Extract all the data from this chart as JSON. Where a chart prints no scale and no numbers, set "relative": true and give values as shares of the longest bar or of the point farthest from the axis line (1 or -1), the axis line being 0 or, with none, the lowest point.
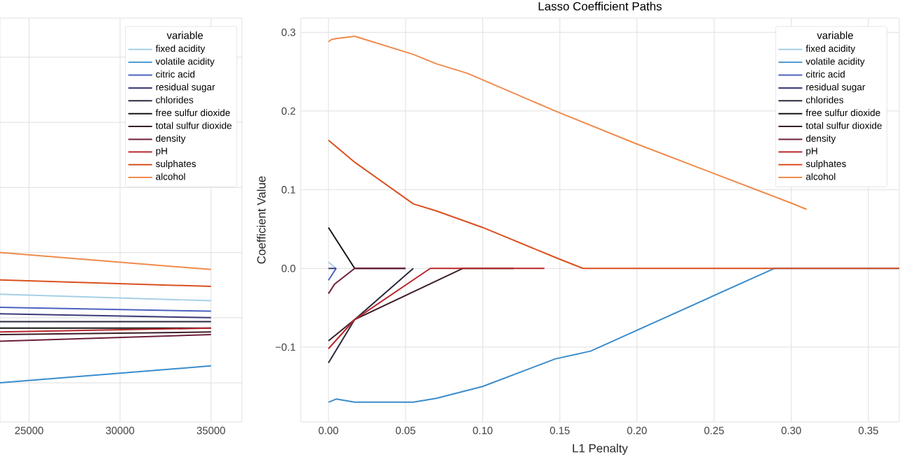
{
  "chart_data": [
    {
      "type": "line",
      "relative": true,
      "x": [
        23400,
        35000
      ],
      "xlim": [
        23400,
        36700
      ],
      "xticks": [
        25000,
        30000,
        35000
      ],
      "tick_labels": "x",
      "grid": true,
      "legend": "top right",
      "legend_title": "variable",
      "series": [
        {
          "name": "fixed acidity",
          "color": "#a6cfe6",
          "values": [
            0.68,
            0.63
          ]
        },
        {
          "name": "volatile acidity",
          "color": "#3a8ccc",
          "values": [
            0,
            0.13
          ]
        },
        {
          "name": "citric acid",
          "color": "#4a62c0",
          "values": [
            0.58,
            0.55
          ]
        },
        {
          "name": "residual sugar",
          "color": "#3a3a78",
          "values": [
            0.53,
            0.5
          ]
        },
        {
          "name": "chlorides",
          "color": "#2a2a3e",
          "values": [
            0.47,
            0.47
          ]
        },
        {
          "name": "free sulfur dioxide",
          "color": "#161616",
          "values": [
            0.42,
            0.42
          ]
        },
        {
          "name": "total sulfur dioxide",
          "color": "#3a1e28",
          "values": [
            0.37,
            0.39
          ]
        },
        {
          "name": "density",
          "color": "#6e1e3a",
          "values": [
            0.32,
            0.37
          ]
        },
        {
          "name": "pH",
          "color": "#b8262c",
          "values": [
            0.39,
            0.42
          ]
        },
        {
          "name": "sulphates",
          "color": "#d9501e",
          "values": [
            0.79,
            0.74
          ]
        },
        {
          "name": "alcohol",
          "color": "#f08a4b",
          "values": [
            1,
            0.87
          ]
        }
      ]
    },
    {
      "type": "line",
      "title": "Lasso Coefficient Paths",
      "xlabel": "L1 Penalty",
      "ylabel": "Coefficient Value",
      "xlim": [
        -0.018,
        0.37
      ],
      "ylim": [
        -0.195,
        0.318
      ],
      "xticks": [
        {
          "value": 0,
          "label": "0.00"
        },
        {
          "value": 0.05,
          "label": "0.05"
        },
        {
          "value": 0.1,
          "label": "0.10"
        },
        {
          "value": 0.15,
          "label": "0.15"
        },
        {
          "value": 0.2,
          "label": "0.20"
        },
        {
          "value": 0.25,
          "label": "0.25"
        },
        {
          "value": 0.3,
          "label": "0.30"
        },
        {
          "value": 0.35,
          "label": "0.35"
        }
      ],
      "yticks": [
        {
          "value": -0.1,
          "label": "−0.1"
        },
        {
          "value": 0,
          "label": "0.0"
        },
        {
          "value": 0.1,
          "label": "0.1"
        },
        {
          "value": 0.2,
          "label": "0.2"
        },
        {
          "value": 0.3,
          "label": "0.3"
        }
      ],
      "grid": true,
      "legend": "top right",
      "legend_title": "variable",
      "series": [
        {
          "name": "fixed acidity",
          "color": "#a6cfe6",
          "x": [
            0,
            0.005
          ],
          "values": [
            0.008,
            0
          ]
        },
        {
          "name": "volatile acidity",
          "color": "#3a8ccc",
          "x": [
            0,
            0.005,
            0.017,
            0.055,
            0.07,
            0.1,
            0.147,
            0.17,
            0.289,
            0.37
          ],
          "values": [
            -0.17,
            -0.166,
            -0.17,
            -0.17,
            -0.165,
            -0.15,
            -0.115,
            -0.105,
            0,
            0
          ]
        },
        {
          "name": "citric acid",
          "color": "#4a62c0",
          "x": [
            0,
            0.005
          ],
          "values": [
            -0.015,
            0
          ]
        },
        {
          "name": "residual sugar",
          "color": "#3a3a78",
          "x": [
            0,
            0.005
          ],
          "values": [
            0,
            0
          ]
        },
        {
          "name": "chlorides",
          "color": "#2a2a3e",
          "x": [
            0,
            0.017,
            0.055
          ],
          "values": [
            -0.12,
            -0.065,
            0
          ]
        },
        {
          "name": "free sulfur dioxide",
          "color": "#161616",
          "x": [
            0,
            0.017,
            0.05
          ],
          "values": [
            0.052,
            0,
            0
          ]
        },
        {
          "name": "total sulfur dioxide",
          "color": "#3a1e28",
          "x": [
            0,
            0.017,
            0.087,
            0.12
          ],
          "values": [
            -0.092,
            -0.065,
            0,
            0
          ]
        },
        {
          "name": "density",
          "color": "#6e1e3a",
          "x": [
            0,
            0.004,
            0.017,
            0.05
          ],
          "values": [
            -0.032,
            -0.02,
            0,
            0
          ]
        },
        {
          "name": "pH",
          "color": "#b8262c",
          "x": [
            0,
            0.017,
            0.066,
            0.14
          ],
          "values": [
            -0.102,
            -0.065,
            0,
            0
          ]
        },
        {
          "name": "sulphates",
          "color": "#d9501e",
          "x": [
            0,
            0.017,
            0.055,
            0.07,
            0.1,
            0.147,
            0.165,
            0.37
          ],
          "values": [
            0.163,
            0.135,
            0.082,
            0.073,
            0.052,
            0.014,
            0,
            0
          ]
        },
        {
          "name": "alcohol",
          "color": "#f08a4b",
          "x": [
            0,
            0.002,
            0.005,
            0.017,
            0.055,
            0.07,
            0.09,
            0.147,
            0.2,
            0.3,
            0.31
          ],
          "values": [
            0.288,
            0.291,
            0.292,
            0.295,
            0.272,
            0.26,
            0.248,
            0.2,
            0.158,
            0.083,
            0.075
          ]
        }
      ]
    }
  ]
}
